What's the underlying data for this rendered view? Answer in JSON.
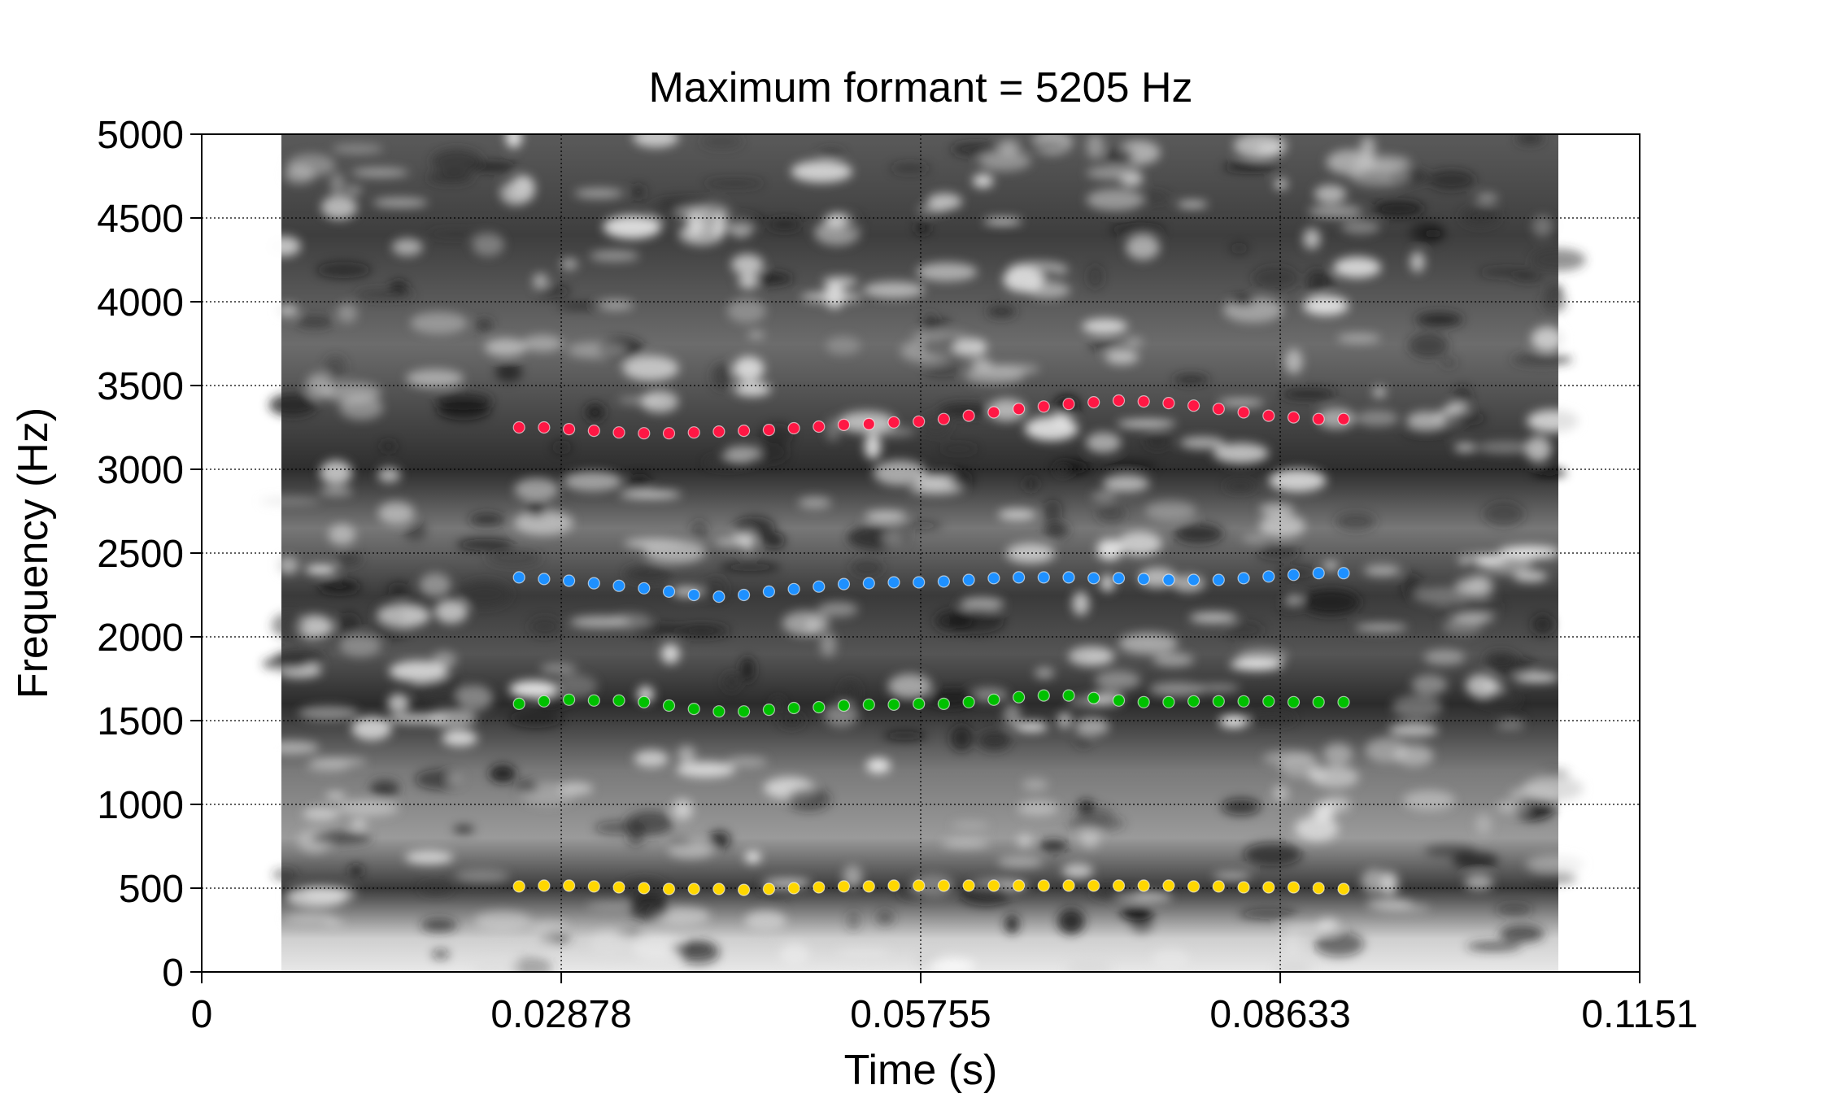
{
  "chart_data": {
    "type": "scatter",
    "title": "Maximum formant = 5205 Hz",
    "xlabel": "Time (s)",
    "ylabel": "Frequency (Hz)",
    "xlim": [
      0,
      0.1151
    ],
    "ylim": [
      0,
      5000
    ],
    "x_ticks": [
      0,
      0.02878,
      0.05755,
      0.08633,
      0.1151
    ],
    "x_tick_labels": [
      "0",
      "0.02878",
      "0.05755",
      "0.08633",
      "0.1151"
    ],
    "y_ticks": [
      0,
      500,
      1000,
      1500,
      2000,
      2500,
      3000,
      3500,
      4000,
      4500,
      5000
    ],
    "y_tick_labels": [
      "0",
      "500",
      "1000",
      "1500",
      "2000",
      "2500",
      "3000",
      "3500",
      "4000",
      "4500",
      "5000"
    ],
    "grid": true,
    "background": "grayscale spectrogram",
    "x": [
      0.0254,
      0.0274,
      0.0294,
      0.0314,
      0.0334,
      0.0354,
      0.0374,
      0.0394,
      0.0414,
      0.0434,
      0.0454,
      0.0474,
      0.0494,
      0.0514,
      0.0534,
      0.0554,
      0.0574,
      0.0594,
      0.0614,
      0.0634,
      0.0654,
      0.0674,
      0.0694,
      0.0714,
      0.0734,
      0.0754,
      0.0774,
      0.0794,
      0.0814,
      0.0834,
      0.0854,
      0.0874,
      0.0894,
      0.0914
    ],
    "series": [
      {
        "color": "#ffd700",
        "values": [
          510,
          515,
          515,
          510,
          505,
          500,
          495,
          495,
          495,
          490,
          495,
          500,
          505,
          510,
          510,
          515,
          515,
          515,
          515,
          515,
          515,
          515,
          515,
          515,
          515,
          515,
          515,
          510,
          510,
          505,
          505,
          505,
          500,
          495
        ]
      },
      {
        "color": "#00c000",
        "values": [
          1600,
          1615,
          1625,
          1620,
          1620,
          1610,
          1590,
          1570,
          1555,
          1555,
          1565,
          1575,
          1580,
          1590,
          1595,
          1595,
          1600,
          1600,
          1610,
          1625,
          1640,
          1650,
          1650,
          1635,
          1620,
          1610,
          1610,
          1615,
          1615,
          1615,
          1615,
          1610,
          1610,
          1610
        ]
      },
      {
        "color": "#1e90ff",
        "values": [
          2355,
          2345,
          2335,
          2320,
          2305,
          2290,
          2270,
          2250,
          2240,
          2250,
          2270,
          2285,
          2300,
          2315,
          2320,
          2325,
          2325,
          2330,
          2340,
          2350,
          2355,
          2355,
          2355,
          2350,
          2350,
          2345,
          2340,
          2340,
          2340,
          2350,
          2360,
          2370,
          2380,
          2380
        ]
      },
      {
        "color": "#ff1744",
        "values": [
          3250,
          3250,
          3240,
          3230,
          3220,
          3215,
          3215,
          3220,
          3225,
          3230,
          3235,
          3245,
          3255,
          3265,
          3270,
          3280,
          3285,
          3300,
          3320,
          3340,
          3360,
          3375,
          3390,
          3400,
          3410,
          3405,
          3395,
          3380,
          3360,
          3340,
          3320,
          3310,
          3300,
          3300
        ]
      }
    ]
  }
}
